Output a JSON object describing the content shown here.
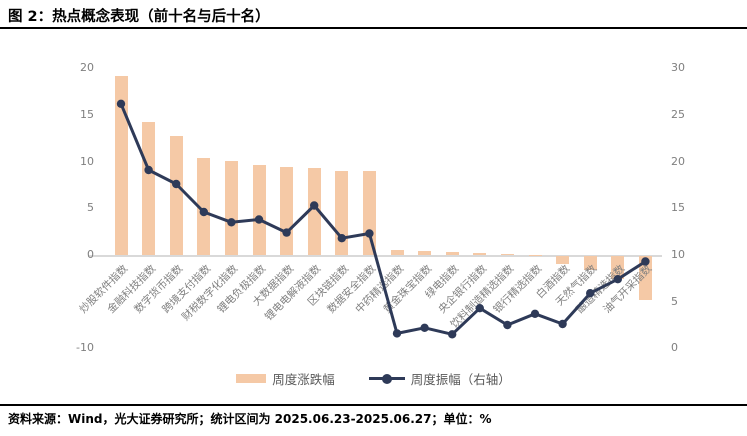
{
  "title": "图 2：热点概念表现（前十名与后十名）",
  "source_note": "资料来源：Wind，光大证券研究所；统计区间为 2025.06.23-2025.06.27；单位：%",
  "legend": {
    "bars": "周度涨跌幅",
    "line": "周度振幅（右轴）"
  },
  "colors": {
    "bar": "#F5C9A6",
    "line": "#2E3A58",
    "axis_text": "#7F7F7F",
    "zero_line": "#D9D9D9",
    "legend_text": "#595959",
    "title_text": "#000000"
  },
  "chart_data": {
    "type": "bar",
    "subtype": "dual-axis bar + line",
    "title": "热点概念表现（前十名与后十名）",
    "unit": "%",
    "categories": [
      "炒股软件指数",
      "金融科技指数",
      "数字货币指数",
      "跨境支付指数",
      "财税数字化指数",
      "锂电负极指数",
      "大数据指数",
      "锂电电解液指数",
      "区块链指数",
      "数据安全指数",
      "中药精选指数",
      "黄金珠宝指数",
      "绿电指数",
      "央企银行指数",
      "饮料制造精选指数",
      "银行精选指数",
      "白酒指数",
      "天然气指数",
      "酿造精选指数",
      "油气开采指数"
    ],
    "series": [
      {
        "name": "周度涨跌幅",
        "type": "bar",
        "axis": "left",
        "values": [
          19.2,
          14.3,
          12.8,
          10.4,
          10.1,
          9.6,
          9.4,
          9.3,
          9.0,
          9.0,
          0.5,
          0.4,
          0.35,
          0.25,
          0.15,
          0.05,
          -0.8,
          -1.5,
          -2.4,
          -4.7
        ]
      },
      {
        "name": "周度振幅（右轴）",
        "type": "line",
        "axis": "right",
        "values": [
          26.2,
          19.1,
          17.6,
          14.6,
          13.5,
          13.8,
          12.4,
          15.3,
          11.8,
          12.3,
          1.6,
          2.2,
          1.5,
          4.3,
          2.5,
          3.7,
          2.6,
          5.9,
          7.4,
          9.3
        ]
      }
    ],
    "left_axis": {
      "min": -10,
      "max": 20,
      "ticks": [
        20,
        15,
        10,
        5,
        0,
        -10
      ]
    },
    "right_axis": {
      "min": 0,
      "max": 30,
      "ticks": [
        30,
        25,
        20,
        15,
        10,
        5,
        0
      ]
    },
    "grid": false,
    "legend_position": "bottom"
  }
}
